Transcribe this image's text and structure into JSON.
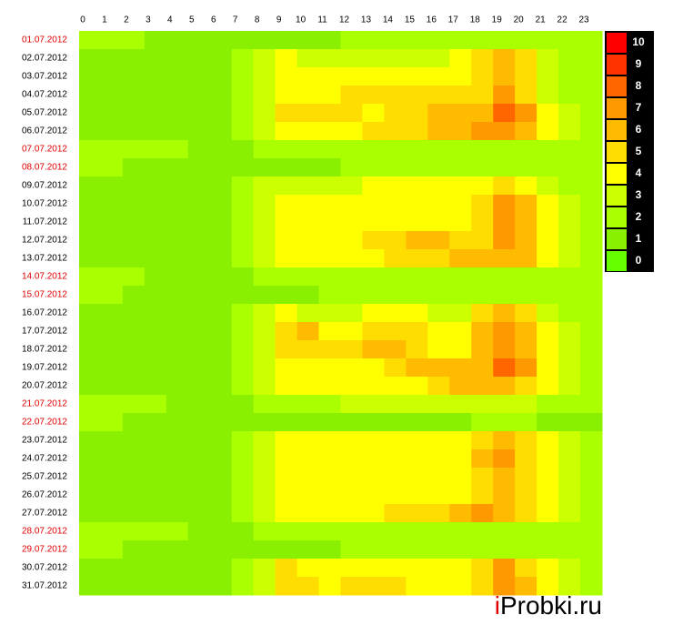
{
  "chart_data": {
    "type": "heatmap",
    "x": [
      0,
      1,
      2,
      3,
      4,
      5,
      6,
      7,
      8,
      9,
      10,
      11,
      12,
      13,
      14,
      15,
      16,
      17,
      18,
      19,
      20,
      21,
      22,
      23
    ],
    "categories": [
      "01.07.2012",
      "02.07.2012",
      "03.07.2012",
      "04.07.2012",
      "05.07.2012",
      "06.07.2012",
      "07.07.2012",
      "08.07.2012",
      "09.07.2012",
      "10.07.2012",
      "11.07.2012",
      "12.07.2012",
      "13.07.2012",
      "14.07.2012",
      "15.07.2012",
      "16.07.2012",
      "17.07.2012",
      "18.07.2012",
      "19.07.2012",
      "20.07.2012",
      "21.07.2012",
      "22.07.2012",
      "23.07.2012",
      "24.07.2012",
      "25.07.2012",
      "26.07.2012",
      "27.07.2012",
      "28.07.2012",
      "29.07.2012",
      "30.07.2012",
      "31.07.2012"
    ],
    "label_colors": [
      "#e00000",
      "#000000",
      "#000000",
      "#000000",
      "#000000",
      "#000000",
      "#e00000",
      "#e00000",
      "#000000",
      "#000000",
      "#000000",
      "#000000",
      "#000000",
      "#e00000",
      "#e00000",
      "#000000",
      "#000000",
      "#000000",
      "#000000",
      "#000000",
      "#e00000",
      "#e00000",
      "#000000",
      "#000000",
      "#000000",
      "#000000",
      "#000000",
      "#e00000",
      "#e00000",
      "#000000",
      "#000000"
    ],
    "values": [
      [
        2,
        2,
        2,
        1,
        1,
        1,
        1,
        1,
        1,
        1,
        1,
        1,
        2,
        2,
        2,
        2,
        2,
        2,
        2,
        2,
        2,
        2,
        2,
        2
      ],
      [
        1,
        1,
        1,
        1,
        1,
        1,
        1,
        2,
        3,
        4,
        3,
        3,
        3,
        3,
        3,
        3,
        3,
        4,
        5,
        6,
        5,
        3,
        2,
        2
      ],
      [
        1,
        1,
        1,
        1,
        1,
        1,
        1,
        2,
        3,
        4,
        4,
        4,
        4,
        4,
        4,
        4,
        4,
        4,
        5,
        6,
        5,
        3,
        2,
        2
      ],
      [
        1,
        1,
        1,
        1,
        1,
        1,
        1,
        2,
        3,
        4,
        4,
        4,
        5,
        5,
        5,
        5,
        5,
        5,
        5,
        7,
        5,
        3,
        2,
        2
      ],
      [
        1,
        1,
        1,
        1,
        1,
        1,
        1,
        2,
        3,
        5,
        5,
        5,
        5,
        4,
        5,
        5,
        6,
        6,
        6,
        8,
        7,
        4,
        3,
        2
      ],
      [
        1,
        1,
        1,
        1,
        1,
        1,
        1,
        2,
        3,
        4,
        4,
        4,
        4,
        5,
        5,
        5,
        6,
        6,
        7,
        7,
        6,
        4,
        3,
        2
      ],
      [
        2,
        2,
        2,
        2,
        2,
        1,
        1,
        1,
        2,
        2,
        2,
        2,
        2,
        2,
        2,
        2,
        2,
        2,
        2,
        2,
        2,
        2,
        2,
        2
      ],
      [
        2,
        2,
        1,
        1,
        1,
        1,
        1,
        1,
        1,
        1,
        1,
        1,
        2,
        2,
        2,
        2,
        2,
        2,
        2,
        2,
        2,
        2,
        2,
        2
      ],
      [
        1,
        1,
        1,
        1,
        1,
        1,
        1,
        2,
        3,
        3,
        3,
        3,
        3,
        4,
        4,
        4,
        4,
        4,
        4,
        5,
        4,
        3,
        2,
        2
      ],
      [
        1,
        1,
        1,
        1,
        1,
        1,
        1,
        2,
        3,
        4,
        4,
        4,
        4,
        4,
        4,
        4,
        4,
        4,
        5,
        7,
        6,
        4,
        3,
        2
      ],
      [
        1,
        1,
        1,
        1,
        1,
        1,
        1,
        2,
        3,
        4,
        4,
        4,
        4,
        4,
        4,
        4,
        4,
        4,
        5,
        7,
        6,
        4,
        3,
        2
      ],
      [
        1,
        1,
        1,
        1,
        1,
        1,
        1,
        2,
        3,
        4,
        4,
        4,
        4,
        5,
        5,
        6,
        6,
        5,
        5,
        7,
        6,
        4,
        3,
        2
      ],
      [
        1,
        1,
        1,
        1,
        1,
        1,
        1,
        2,
        3,
        4,
        4,
        4,
        4,
        4,
        5,
        5,
        5,
        6,
        6,
        6,
        6,
        4,
        3,
        2
      ],
      [
        2,
        2,
        2,
        1,
        1,
        1,
        1,
        1,
        2,
        2,
        2,
        2,
        2,
        2,
        2,
        2,
        2,
        2,
        2,
        2,
        2,
        2,
        2,
        2
      ],
      [
        2,
        2,
        1,
        1,
        1,
        1,
        1,
        1,
        1,
        1,
        1,
        2,
        2,
        2,
        2,
        2,
        2,
        2,
        2,
        2,
        2,
        2,
        2,
        2
      ],
      [
        1,
        1,
        1,
        1,
        1,
        1,
        1,
        2,
        3,
        4,
        3,
        3,
        3,
        4,
        4,
        4,
        3,
        3,
        5,
        6,
        5,
        3,
        2,
        2
      ],
      [
        1,
        1,
        1,
        1,
        1,
        1,
        1,
        2,
        3,
        5,
        6,
        4,
        4,
        5,
        5,
        5,
        4,
        4,
        6,
        7,
        6,
        4,
        3,
        2
      ],
      [
        1,
        1,
        1,
        1,
        1,
        1,
        1,
        2,
        3,
        5,
        5,
        5,
        5,
        6,
        6,
        5,
        4,
        4,
        6,
        7,
        6,
        4,
        3,
        2
      ],
      [
        1,
        1,
        1,
        1,
        1,
        1,
        1,
        2,
        3,
        4,
        4,
        4,
        4,
        4,
        5,
        6,
        6,
        6,
        6,
        8,
        7,
        4,
        3,
        2
      ],
      [
        1,
        1,
        1,
        1,
        1,
        1,
        1,
        2,
        3,
        4,
        4,
        4,
        4,
        4,
        4,
        4,
        5,
        6,
        6,
        6,
        5,
        4,
        3,
        2
      ],
      [
        2,
        2,
        2,
        2,
        1,
        1,
        1,
        1,
        2,
        2,
        2,
        2,
        3,
        3,
        3,
        3,
        3,
        3,
        3,
        3,
        3,
        2,
        2,
        2
      ],
      [
        2,
        2,
        1,
        1,
        1,
        1,
        1,
        1,
        1,
        1,
        1,
        1,
        1,
        1,
        1,
        1,
        1,
        1,
        2,
        2,
        2,
        1,
        1,
        1
      ],
      [
        1,
        1,
        1,
        1,
        1,
        1,
        1,
        2,
        3,
        4,
        4,
        4,
        4,
        4,
        4,
        4,
        4,
        4,
        5,
        6,
        5,
        4,
        3,
        2
      ],
      [
        1,
        1,
        1,
        1,
        1,
        1,
        1,
        2,
        3,
        4,
        4,
        4,
        4,
        4,
        4,
        4,
        4,
        4,
        6,
        7,
        5,
        4,
        3,
        2
      ],
      [
        1,
        1,
        1,
        1,
        1,
        1,
        1,
        2,
        3,
        4,
        4,
        4,
        4,
        4,
        4,
        4,
        4,
        4,
        5,
        6,
        5,
        4,
        3,
        2
      ],
      [
        1,
        1,
        1,
        1,
        1,
        1,
        1,
        2,
        3,
        4,
        4,
        4,
        4,
        4,
        4,
        4,
        4,
        4,
        5,
        6,
        5,
        4,
        3,
        2
      ],
      [
        1,
        1,
        1,
        1,
        1,
        1,
        1,
        2,
        3,
        4,
        4,
        4,
        4,
        4,
        5,
        5,
        5,
        6,
        7,
        6,
        5,
        4,
        3,
        2
      ],
      [
        2,
        2,
        2,
        2,
        2,
        1,
        1,
        1,
        2,
        2,
        2,
        2,
        2,
        2,
        2,
        2,
        2,
        2,
        2,
        2,
        2,
        2,
        2,
        2
      ],
      [
        2,
        2,
        1,
        1,
        1,
        1,
        1,
        1,
        1,
        1,
        1,
        1,
        2,
        2,
        2,
        2,
        2,
        2,
        2,
        2,
        2,
        2,
        2,
        2
      ],
      [
        1,
        1,
        1,
        1,
        1,
        1,
        1,
        2,
        3,
        5,
        4,
        4,
        4,
        4,
        4,
        4,
        4,
        4,
        5,
        7,
        5,
        4,
        3,
        2
      ],
      [
        1,
        1,
        1,
        1,
        1,
        1,
        1,
        2,
        3,
        5,
        5,
        4,
        5,
        5,
        5,
        4,
        4,
        4,
        5,
        7,
        6,
        4,
        3,
        2
      ]
    ],
    "legend": {
      "levels": [
        0,
        1,
        2,
        3,
        4,
        5,
        6,
        7,
        8,
        9,
        10
      ],
      "colors": [
        "#66ff00",
        "#88f000",
        "#aaff00",
        "#ccff00",
        "#ffff00",
        "#ffdd00",
        "#ffbb00",
        "#ff9900",
        "#ff6600",
        "#ff3300",
        "#ff0000"
      ]
    },
    "watermark": [
      "i",
      "Probki.ru"
    ],
    "watermark_colors": [
      "#e00000",
      "#000000"
    ]
  }
}
